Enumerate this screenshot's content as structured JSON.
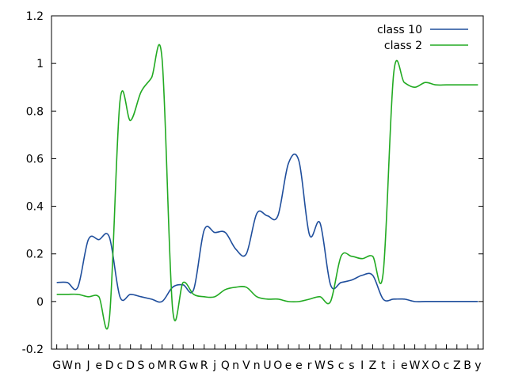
{
  "chart_data": {
    "type": "line",
    "title": "",
    "xlabel": "",
    "ylabel": "",
    "ylim": [
      -0.2,
      1.2
    ],
    "yticks": [
      -0.2,
      0,
      0.2,
      0.4,
      0.6,
      0.8,
      1,
      1.2
    ],
    "ytick_labels": [
      "-0.2",
      "0",
      "0.2",
      "0.4",
      "0.6",
      "0.8",
      "1",
      "1.2"
    ],
    "categories": [
      "G",
      "W",
      "n",
      "J",
      "e",
      "D",
      "c",
      "D",
      "S",
      "o",
      "M",
      "R",
      "G",
      "w",
      "R",
      "j",
      "Q",
      "n",
      "V",
      "n",
      "U",
      "O",
      "e",
      "e",
      "r",
      "W",
      "S",
      "c",
      "s",
      "I",
      "Z",
      "t",
      "i",
      "e",
      "W",
      "X",
      "O",
      "c",
      "Z",
      "B",
      "y"
    ],
    "legend_position": "top-right",
    "series": [
      {
        "name": "class 10",
        "color": "#1f4e9c",
        "values": [
          0.08,
          0.08,
          0.06,
          0.26,
          0.26,
          0.27,
          0.02,
          0.03,
          0.02,
          0.01,
          0.0,
          0.06,
          0.07,
          0.05,
          0.3,
          0.29,
          0.29,
          0.22,
          0.2,
          0.37,
          0.36,
          0.36,
          0.58,
          0.59,
          0.28,
          0.33,
          0.07,
          0.08,
          0.09,
          0.11,
          0.11,
          0.01,
          0.01,
          0.01,
          0.0,
          0.0,
          0.0,
          0.0,
          0.0,
          0.0,
          0.0
        ]
      },
      {
        "name": "class 2",
        "color": "#22aa22",
        "values": [
          0.03,
          0.03,
          0.03,
          0.02,
          0.02,
          -0.07,
          0.84,
          0.76,
          0.88,
          0.94,
          1.02,
          -0.03,
          0.08,
          0.03,
          0.02,
          0.02,
          0.05,
          0.06,
          0.06,
          0.02,
          0.01,
          0.01,
          0.0,
          0.0,
          0.01,
          0.02,
          0.0,
          0.19,
          0.19,
          0.18,
          0.19,
          0.12,
          0.96,
          0.92,
          0.9,
          0.92,
          0.91,
          0.91,
          0.91,
          0.91,
          0.91
        ]
      }
    ]
  }
}
